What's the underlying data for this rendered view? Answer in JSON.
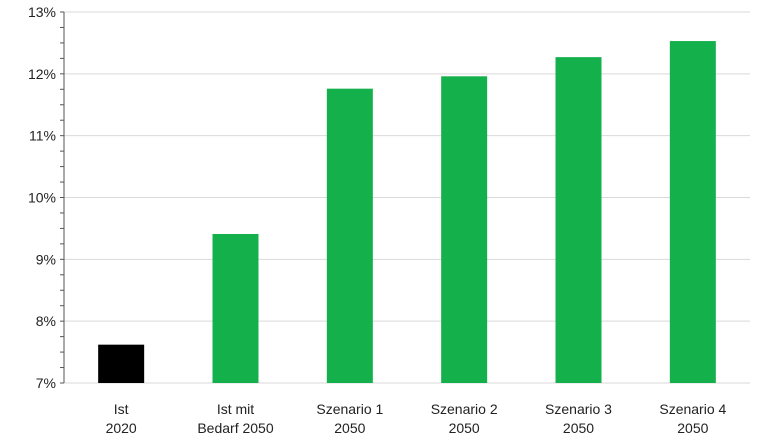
{
  "chart_data": {
    "type": "bar",
    "title": "",
    "xlabel": "",
    "ylabel": "",
    "ylim": [
      7,
      13
    ],
    "y_ticks": [
      "7%",
      "8%",
      "9%",
      "10%",
      "11%",
      "12%",
      "13%"
    ],
    "grid": true,
    "categories": [
      [
        "Ist",
        "2020"
      ],
      [
        "Ist mit",
        "Bedarf 2050"
      ],
      [
        "Szenario 1",
        "2050"
      ],
      [
        "Szenario 2",
        "2050"
      ],
      [
        "Szenario 3",
        "2050"
      ],
      [
        "Szenario 4",
        "2050"
      ]
    ],
    "values": [
      7.62,
      9.41,
      11.76,
      11.96,
      12.27,
      12.53
    ],
    "colors": [
      "#000000",
      "#14b04c",
      "#14b04c",
      "#14b04c",
      "#14b04c",
      "#14b04c"
    ]
  }
}
